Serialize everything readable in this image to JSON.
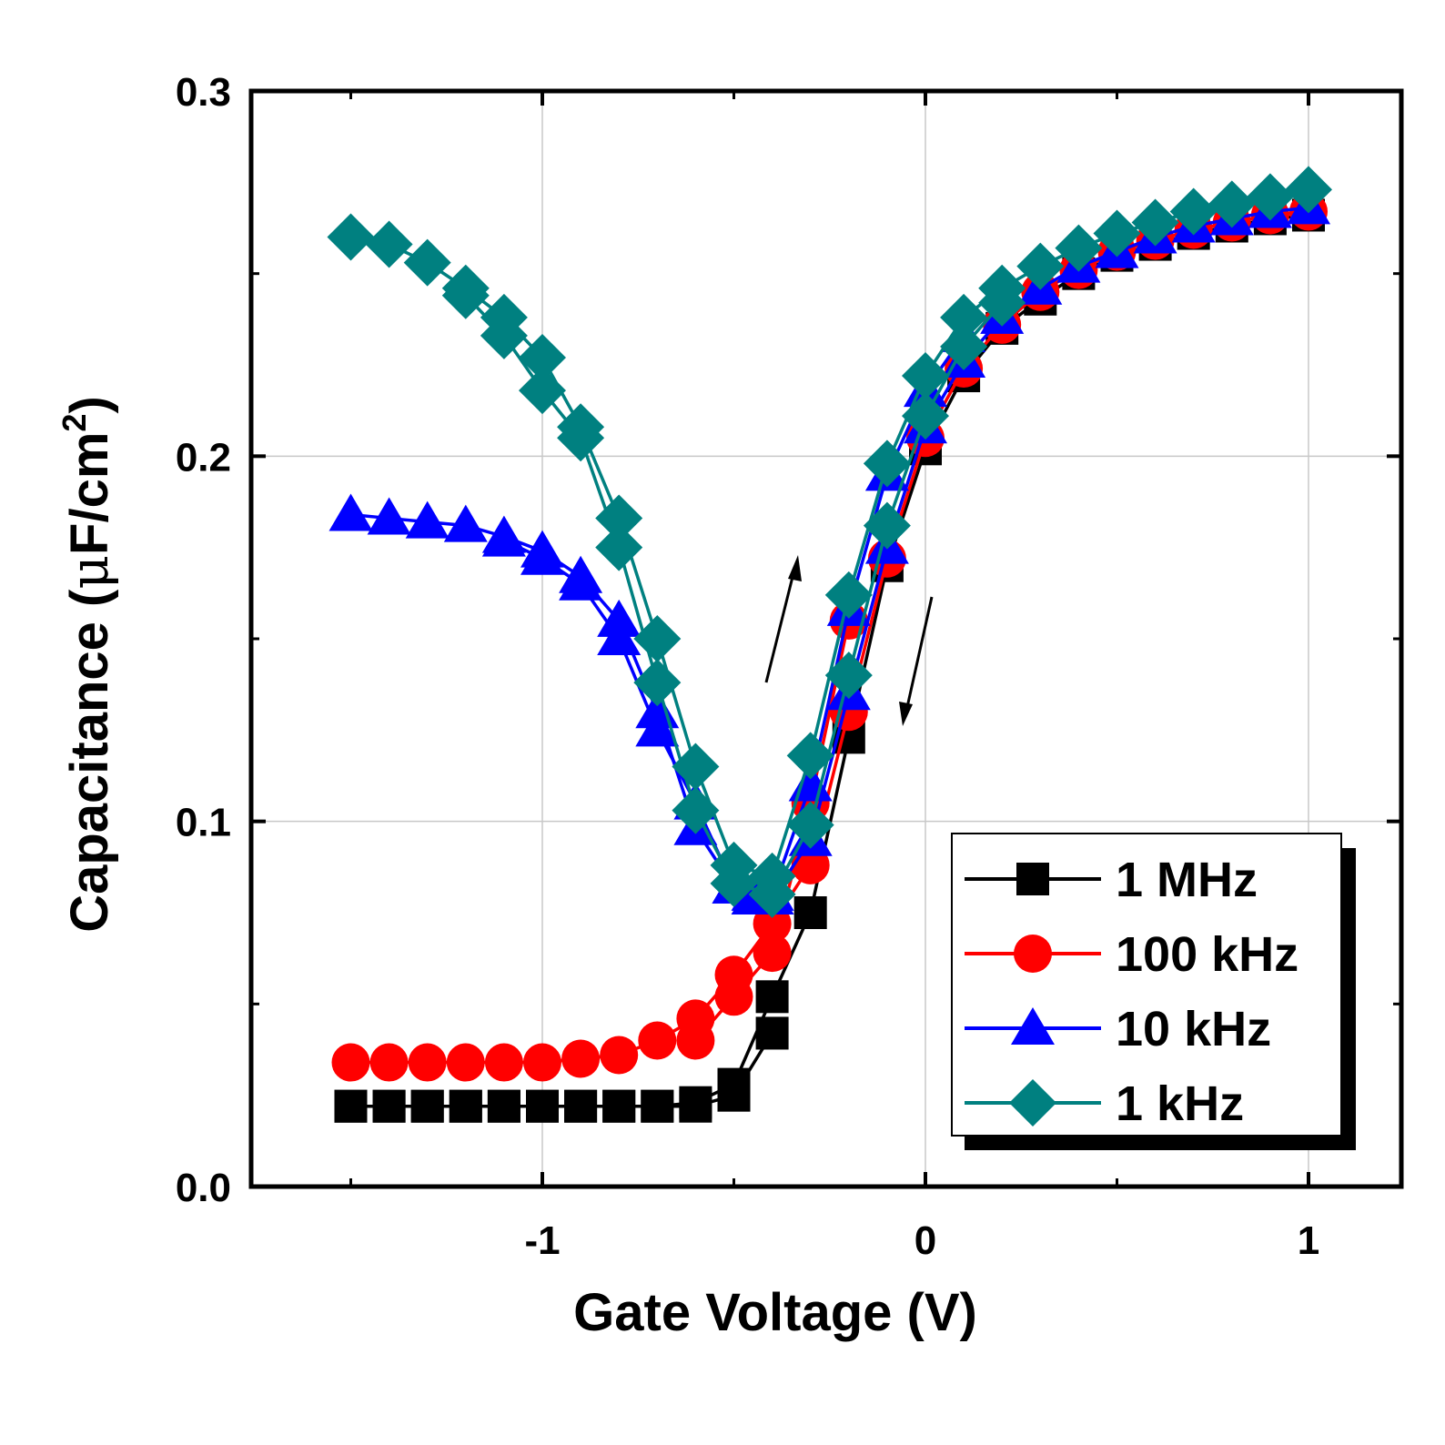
{
  "chart_data": {
    "type": "line",
    "xlabel": "Gate Voltage (V)",
    "ylabel": {
      "prefix": "Capacitance (",
      "greek": "μ",
      "unit": "F/cm",
      "superscript": "2",
      "suffix": ")"
    },
    "xlim": [
      -1.5,
      1.25
    ],
    "ylim": [
      0.0,
      0.3
    ],
    "x_ticks": [
      -1,
      0,
      1
    ],
    "x_tick_labels": [
      "-1",
      "0",
      "1"
    ],
    "y_ticks": [
      0.0,
      0.1,
      0.2,
      0.3
    ],
    "y_tick_labels": [
      "0.0",
      "0.1",
      "0.2",
      "0.3"
    ],
    "grid": true,
    "legend_position": "bottom-right",
    "series": [
      {
        "name": "1 MHz",
        "color": "#000000",
        "marker": "square",
        "sweeps": [
          {
            "x": [
              -1.5,
              -1.4,
              -1.3,
              -1.2,
              -1.1,
              -1.0,
              -0.9,
              -0.8,
              -0.7,
              -0.6,
              -0.5,
              -0.4,
              -0.3,
              -0.2,
              -0.1,
              0.0,
              0.1,
              0.2,
              0.3,
              0.4,
              0.5,
              0.6,
              0.7,
              0.8,
              0.9,
              1.0
            ],
            "y": [
              0.022,
              0.022,
              0.022,
              0.022,
              0.022,
              0.022,
              0.022,
              0.022,
              0.022,
              0.023,
              0.028,
              0.052,
              0.075,
              0.123,
              0.17,
              0.202,
              0.222,
              0.235,
              0.243,
              0.25,
              0.255,
              0.258,
              0.261,
              0.263,
              0.265,
              0.266
            ]
          },
          {
            "x": [
              -1.5,
              -1.4,
              -1.3,
              -1.2,
              -1.1,
              -1.0,
              -0.9,
              -0.8,
              -0.7,
              -0.6,
              -0.5,
              -0.4
            ],
            "y": [
              0.022,
              0.022,
              0.022,
              0.022,
              0.022,
              0.022,
              0.022,
              0.022,
              0.022,
              0.022,
              0.025,
              0.042
            ]
          }
        ]
      },
      {
        "name": "100 kHz",
        "color": "#ff0000",
        "marker": "circle",
        "sweeps": [
          {
            "x": [
              -1.5,
              -1.4,
              -1.3,
              -1.2,
              -1.1,
              -1.0,
              -0.9,
              -0.8,
              -0.7,
              -0.6,
              -0.5,
              -0.4,
              -0.3,
              -0.2,
              -0.1,
              0.0,
              0.1,
              0.2,
              0.3,
              0.4,
              0.5,
              0.6,
              0.7,
              0.8,
              0.9,
              1.0
            ],
            "y": [
              0.034,
              0.034,
              0.034,
              0.034,
              0.034,
              0.034,
              0.035,
              0.036,
              0.04,
              0.046,
              0.058,
              0.072,
              0.088,
              0.13,
              0.172,
              0.205,
              0.224,
              0.236,
              0.245,
              0.251,
              0.256,
              0.259,
              0.262,
              0.264,
              0.266,
              0.267
            ]
          },
          {
            "x": [
              -0.6,
              -0.5,
              -0.4,
              -0.3,
              -0.2
            ],
            "y": [
              0.04,
              0.052,
              0.064,
              0.105,
              0.155
            ]
          }
        ]
      },
      {
        "name": "10 kHz",
        "color": "#0000ff",
        "marker": "triangle",
        "sweeps": [
          {
            "x": [
              -1.5,
              -1.4,
              -1.3,
              -1.2,
              -1.1,
              -1.0,
              -0.9,
              -0.8,
              -0.7,
              -0.6,
              -0.5,
              -0.45,
              -0.4,
              -0.3,
              -0.2,
              -0.1,
              0.0,
              0.1,
              0.2,
              0.3,
              0.4,
              0.5,
              0.6,
              0.7,
              0.8,
              0.9,
              1.0
            ],
            "y": [
              0.184,
              0.183,
              0.182,
              0.181,
              0.178,
              0.174,
              0.167,
              0.155,
              0.13,
              0.098,
              0.082,
              0.079,
              0.079,
              0.095,
              0.135,
              0.175,
              0.208,
              0.226,
              0.238,
              0.246,
              0.252,
              0.256,
              0.26,
              0.263,
              0.265,
              0.267,
              0.268
            ]
          },
          {
            "x": [
              -1.1,
              -1.0,
              -0.9,
              -0.8,
              -0.7,
              -0.6,
              -0.5,
              -0.45,
              -0.4,
              -0.3,
              -0.2,
              -0.1,
              0.0,
              0.1
            ],
            "y": [
              0.177,
              0.172,
              0.165,
              0.15,
              0.125,
              0.105,
              0.082,
              0.08,
              0.08,
              0.11,
              0.158,
              0.195,
              0.218,
              0.233
            ]
          }
        ]
      },
      {
        "name": "1 kHz",
        "color": "#008080",
        "marker": "diamond",
        "sweeps": [
          {
            "x": [
              -1.5,
              -1.4,
              -1.3,
              -1.2,
              -1.1,
              -1.0,
              -0.9,
              -0.8,
              -0.7,
              -0.6,
              -0.5,
              -0.4,
              -0.3,
              -0.2,
              -0.1,
              0.0,
              0.1,
              0.2,
              0.3,
              0.4,
              0.5,
              0.6,
              0.7,
              0.8,
              0.9,
              1.0
            ],
            "y": [
              0.26,
              0.258,
              0.253,
              0.246,
              0.238,
              0.227,
              0.208,
              0.183,
              0.15,
              0.115,
              0.088,
              0.085,
              0.118,
              0.162,
              0.198,
              0.222,
              0.238,
              0.246,
              0.252,
              0.257,
              0.261,
              0.264,
              0.267,
              0.269,
              0.271,
              0.273
            ]
          },
          {
            "x": [
              -1.2,
              -1.1,
              -1.0,
              -0.9,
              -0.8,
              -0.7,
              -0.6,
              -0.5,
              -0.4,
              -0.3,
              -0.2,
              -0.1,
              0.0,
              0.1,
              0.2
            ],
            "y": [
              0.244,
              0.233,
              0.218,
              0.205,
              0.175,
              0.138,
              0.103,
              0.083,
              0.08,
              0.099,
              0.14,
              0.181,
              0.211,
              0.23,
              0.242
            ]
          }
        ]
      }
    ]
  }
}
